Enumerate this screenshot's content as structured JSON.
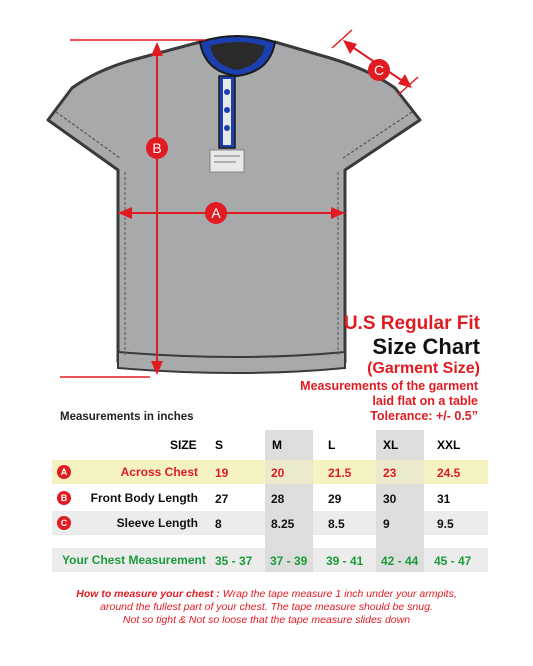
{
  "diagram": {
    "labels": {
      "a": "A",
      "b": "B",
      "c": "C"
    }
  },
  "heading": {
    "fit": "U.S Regular Fit",
    "title": "Size Chart",
    "subtitle": "(Garment Size)"
  },
  "notes": {
    "line1": "Measurements of the garment",
    "line2": "laid flat  on a table",
    "line3": "Tolerance: +/- 0.5”"
  },
  "units_label": "Measurements in inches",
  "table": {
    "size_header": "SIZE",
    "sizes": [
      "S",
      "M",
      "L",
      "XL",
      "XXL"
    ],
    "rows": [
      {
        "badge": "A",
        "label": "Across Chest",
        "values": [
          "19",
          "20",
          "21.5",
          "23",
          "24.5"
        ]
      },
      {
        "badge": "B",
        "label": "Front Body Length",
        "values": [
          "27",
          "28",
          "29",
          "30",
          "31"
        ]
      },
      {
        "badge": "C",
        "label": "Sleeve Length",
        "values": [
          "8",
          "8.25",
          "8.5",
          "9",
          "9.5"
        ]
      }
    ],
    "chest_row": {
      "label": "Your Chest Measurement",
      "values": [
        "35 - 37",
        "37 - 39",
        "39 - 41",
        "42 - 44",
        "45 - 47"
      ]
    }
  },
  "howto": {
    "lead": "How to measure your chest :",
    "text1": "Wrap the tape measure 1 inch under your armpits,",
    "text2": "around the fullest part of your chest. The tape measure should be snug.",
    "text3": "Not so tight & Not so loose that the tape measure slides down"
  },
  "colors": {
    "accent_red": "#e11b22",
    "highlight_yellow": "#f6f3c3",
    "chest_green": "#1a9b3a",
    "shirt_gray": "#a8a9ab",
    "collar_blue": "#1c3fb0"
  }
}
